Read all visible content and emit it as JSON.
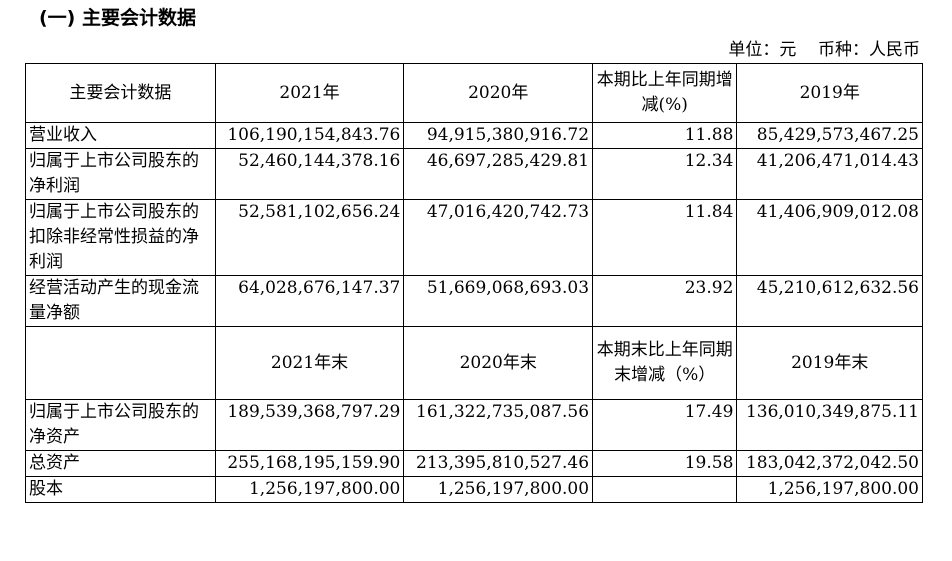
{
  "section_title": "(一) 主要会计数据",
  "unit": {
    "unit_label": "单位：元",
    "currency_label": "币种：人民币"
  },
  "table": {
    "header1": [
      "主要会计数据",
      "2021年",
      "2020年",
      "本期比上年同期增减(%)",
      "2019年"
    ],
    "rows1": [
      {
        "label": "营业收入",
        "v2021": "106,190,154,843.76",
        "v2020": "94,915,380,916.72",
        "change": "11.88",
        "v2019": "85,429,573,467.25"
      },
      {
        "label": "归属于上市公司股东的净利润",
        "v2021": "52,460,144,378.16",
        "v2020": "46,697,285,429.81",
        "change": "12.34",
        "v2019": "41,206,471,014.43"
      },
      {
        "label": "归属于上市公司股东的扣除非经常性损益的净利润",
        "v2021": "52,581,102,656.24",
        "v2020": "47,016,420,742.73",
        "change": "11.84",
        "v2019": "41,406,909,012.08"
      },
      {
        "label": "经营活动产生的现金流量净额",
        "v2021": "64,028,676,147.37",
        "v2020": "51,669,068,693.03",
        "change": "23.92",
        "v2019": "45,210,612,632.56"
      }
    ],
    "header2": [
      "",
      "2021年末",
      "2020年末",
      "本期末比上年同期末增减（%）",
      "2019年末"
    ],
    "rows2": [
      {
        "label": "归属于上市公司股东的净资产",
        "v2021": "189,539,368,797.29",
        "v2020": "161,322,735,087.56",
        "change": "17.49",
        "v2019": "136,010,349,875.11"
      },
      {
        "label": "总资产",
        "v2021": "255,168,195,159.90",
        "v2020": "213,395,810,527.46",
        "change": "19.58",
        "v2019": "183,042,372,042.50"
      },
      {
        "label": "股本",
        "v2021": "1,256,197,800.00",
        "v2020": "1,256,197,800.00",
        "change": "",
        "v2019": "1,256,197,800.00"
      }
    ]
  }
}
